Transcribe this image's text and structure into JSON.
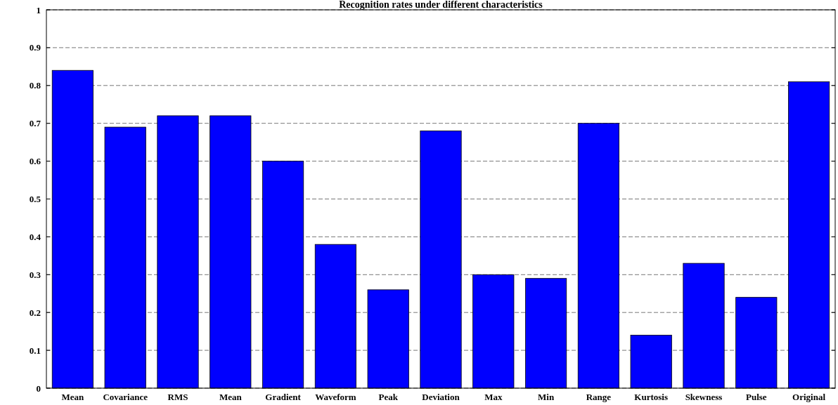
{
  "chart_data": {
    "type": "bar",
    "title": "Recognition rates under different characteristics",
    "categories": [
      "Mean",
      "Covariance",
      "RMS",
      "Mean",
      "Gradient",
      "Waveform",
      "Peak",
      "Deviation",
      "Max",
      "Min",
      "Range",
      "Kurtosis",
      "Skewness",
      "Pulse",
      "Original"
    ],
    "values": [
      0.84,
      0.69,
      0.72,
      0.72,
      0.6,
      0.38,
      0.26,
      0.68,
      0.3,
      0.29,
      0.7,
      0.14,
      0.33,
      0.24,
      0.81
    ],
    "color": "#0000ff",
    "ylim": [
      0,
      1
    ],
    "yticks": [
      0,
      0.1,
      0.2,
      0.3,
      0.4,
      0.5,
      0.6,
      0.7,
      0.8,
      0.9,
      1
    ],
    "grid": "y"
  }
}
